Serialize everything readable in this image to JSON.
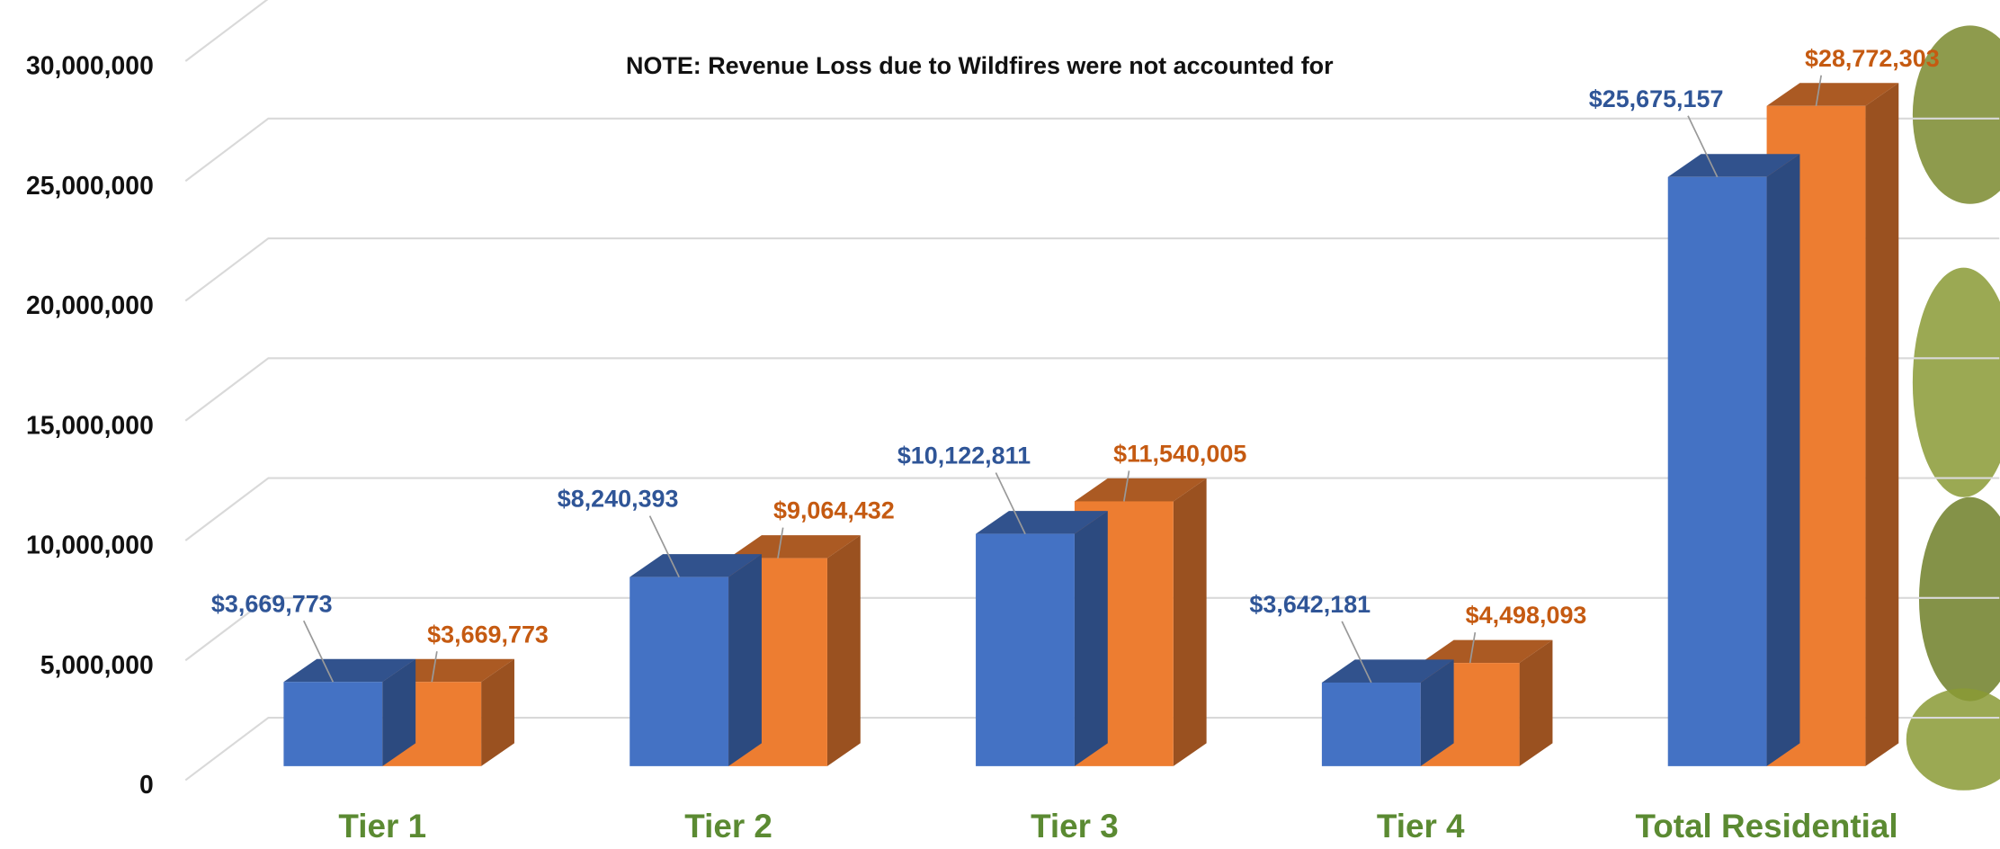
{
  "chart_data": {
    "type": "bar3d",
    "annotation": "NOTE: Revenue Loss due to Wildfires were not accounted for",
    "categories": [
      "Tier 1",
      "Tier 2",
      "Tier 3",
      "Tier 4",
      "Total Residential"
    ],
    "series": [
      {
        "color": "#4472c4",
        "label_color": "#2f5597",
        "values": [
          3669773,
          8240393,
          10122811,
          3642181,
          25675157
        ],
        "value_labels": [
          "$3,669,773",
          "$8,240,393",
          "$10,122,811",
          "$3,642,181",
          "$25,675,157"
        ]
      },
      {
        "color": "#ed7d31",
        "label_color": "#c55a11",
        "values": [
          3669773,
          9064432,
          11540005,
          4498093,
          28772303
        ],
        "value_labels": [
          "$3,669,773",
          "$9,064,432",
          "$11,540,005",
          "$4,498,093",
          "$28,772,303"
        ]
      }
    ],
    "ylim": [
      0,
      30000000
    ],
    "yticks": [
      0,
      {
        "value": 5000000,
        "label": "5,000,000"
      },
      {
        "value": 10000000,
        "label": "10,000,000"
      },
      {
        "value": 15000000,
        "label": "15,000,000"
      },
      {
        "value": 20000000,
        "label": "20,000,000"
      },
      {
        "value": 25000000,
        "label": "25,000,000"
      },
      {
        "value": 30000000,
        "label": "30,000,000"
      }
    ],
    "grid": true
  }
}
